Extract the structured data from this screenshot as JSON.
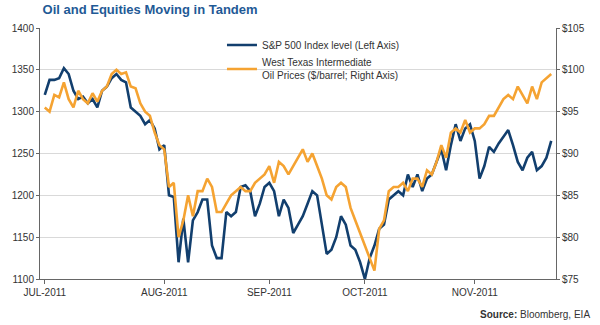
{
  "chart_data": {
    "type": "line",
    "title": "Oil and Equities Moving in Tandem",
    "source_label": "Source:",
    "source": "Bloomberg, EIA",
    "categories": [
      "JUL-2011",
      null,
      null,
      null,
      null,
      null,
      null,
      null,
      null,
      null,
      null,
      null,
      null,
      null,
      null,
      null,
      null,
      null,
      null,
      null,
      null,
      null,
      null,
      null,
      null,
      "AUG-2011",
      null,
      null,
      null,
      null,
      null,
      null,
      null,
      null,
      null,
      null,
      null,
      null,
      null,
      null,
      null,
      null,
      null,
      null,
      null,
      null,
      null,
      "SEP-2011",
      null,
      null,
      null,
      null,
      null,
      null,
      null,
      null,
      null,
      null,
      null,
      null,
      null,
      null,
      null,
      null,
      null,
      null,
      null,
      "OCT-2011",
      null,
      null,
      null,
      null,
      null,
      null,
      null,
      null,
      null,
      null,
      null,
      null,
      null,
      null,
      null,
      null,
      null,
      null,
      null,
      null,
      null,
      null,
      "NOV-2011",
      null,
      null,
      null,
      null,
      null,
      null,
      null,
      null,
      null,
      null,
      null,
      null,
      null,
      null,
      null,
      null
    ],
    "series": [
      {
        "name": "S&P 500 Index level (Left Axis)",
        "color": "#123f6e",
        "values": [
          1320,
          1338,
          1338,
          1340,
          1352,
          1345,
          1325,
          1315,
          1318,
          1310,
          1315,
          1305,
          1325,
          1330,
          1340,
          1345,
          1338,
          1335,
          1305,
          1300,
          1295,
          1285,
          1290,
          1280,
          1255,
          1260,
          1200,
          1198,
          1120,
          1172,
          1120,
          1170,
          1180,
          1195,
          1195,
          1140,
          1125,
          1125,
          1180,
          1175,
          1180,
          1210,
          1212,
          1205,
          1175,
          1190,
          1210,
          1215,
          1205,
          1175,
          1195,
          1185,
          1155,
          1165,
          1175,
          1190,
          1205,
          1200,
          1165,
          1130,
          1135,
          1150,
          1175,
          1165,
          1140,
          1135,
          1120,
          1100,
          1125,
          1140,
          1160,
          1165,
          1195,
          1200,
          1205,
          1200,
          1225,
          1210,
          1225,
          1205,
          1220,
          1225,
          1240,
          1255,
          1230,
          1260,
          1285,
          1265,
          1280,
          1285,
          1265,
          1220,
          1235,
          1258,
          1252,
          1262,
          1270,
          1278,
          1260,
          1240,
          1230,
          1245,
          1252,
          1230,
          1235,
          1245,
          1265
        ]
      },
      {
        "name": "West Texas Intermediate\nOil Prices ($/barrel; Right Axis)",
        "color": "#f5a332",
        "axis": "y2",
        "values": [
          95.5,
          95,
          97,
          96.7,
          98.5,
          96.5,
          95.5,
          97.5,
          96.5,
          96,
          97.2,
          96.2,
          97.5,
          98,
          99.5,
          100,
          99.5,
          99.7,
          98,
          97.8,
          96,
          95,
          94.5,
          92.5,
          91,
          90.5,
          86,
          86.5,
          80,
          82,
          85,
          82.5,
          85.5,
          85.5,
          87,
          86,
          83,
          83,
          84,
          85,
          85.5,
          86,
          85.5,
          85.5,
          86.5,
          87,
          87.5,
          88.5,
          86.5,
          89,
          88.5,
          87.5,
          88.5,
          89.5,
          90.5,
          89,
          90,
          88.5,
          87,
          85,
          84.5,
          86,
          86.5,
          86,
          83.5,
          82,
          80.5,
          79,
          77.5,
          76,
          81,
          82,
          85.5,
          86,
          86,
          86.5,
          85.5,
          87,
          87,
          86,
          88,
          87.5,
          89,
          91,
          89.5,
          92.5,
          93,
          92.5,
          94,
          92.5,
          93,
          93,
          93.5,
          94.5,
          94.5,
          95.5,
          96.5,
          97,
          96.5,
          98,
          97,
          96,
          98,
          96.5,
          98.5,
          99,
          99.5
        ]
      }
    ],
    "ylim": [
      1100,
      1400
    ],
    "yticks": [
      1100,
      1150,
      1200,
      1250,
      1300,
      1350,
      1400
    ],
    "y2lim": [
      75,
      105
    ],
    "y2ticks": [
      {
        "value": 75,
        "label": "$75"
      },
      {
        "value": 80,
        "label": "$80"
      },
      {
        "value": 85,
        "label": "$85"
      },
      {
        "value": 90,
        "label": "$90"
      },
      {
        "value": 95,
        "label": "$95"
      },
      {
        "value": 100,
        "label": "$100"
      },
      {
        "value": 105,
        "label": "$105"
      }
    ],
    "grid": true,
    "legend": "top"
  }
}
